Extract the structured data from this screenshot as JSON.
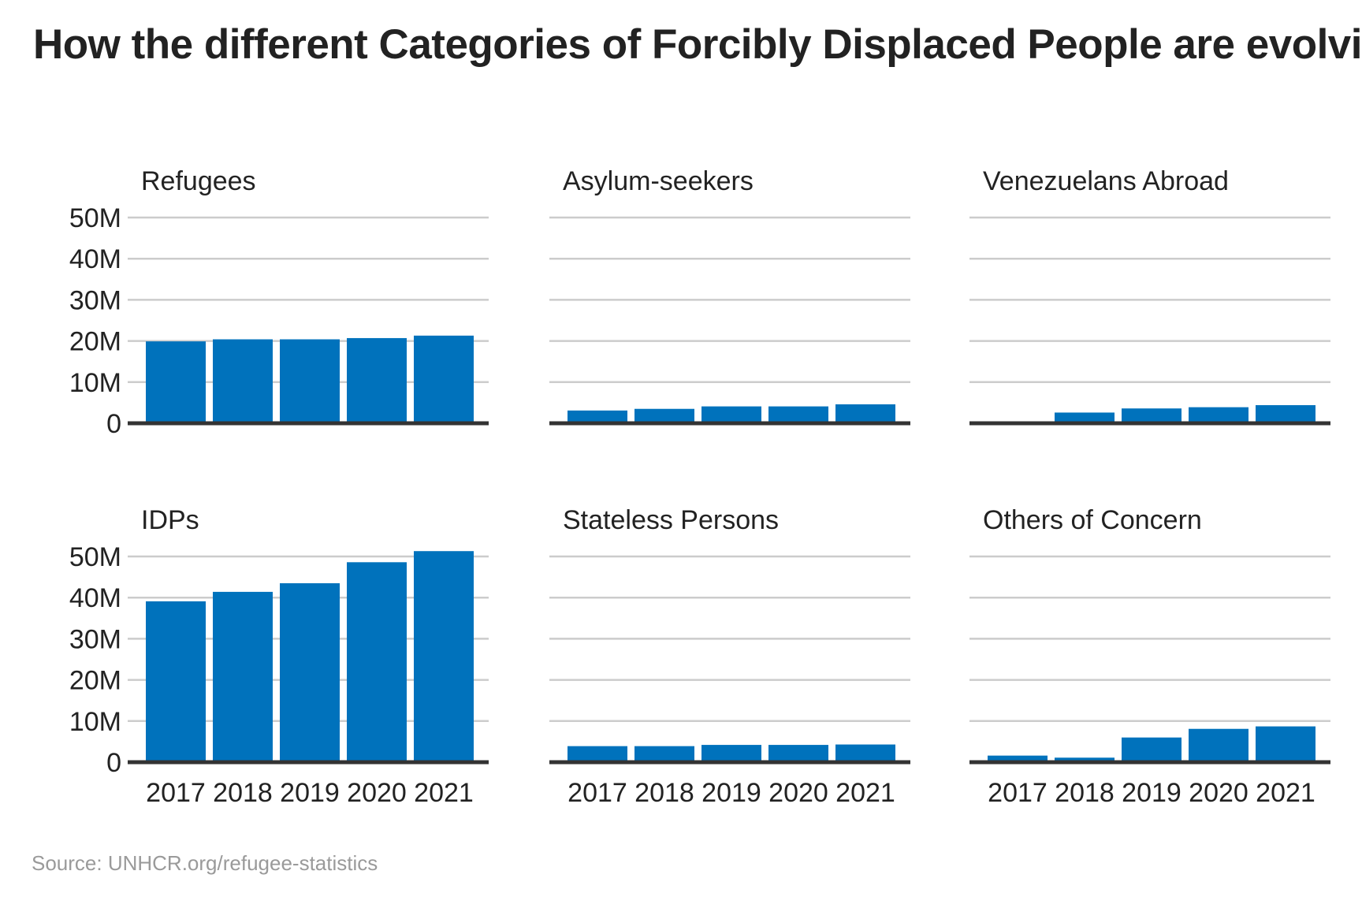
{
  "title": "How the different Categories of Forcibly Displaced People are evolving",
  "source": "Source: UNHCR.org/refugee-statistics",
  "colors": {
    "bar": "#0072bc",
    "grid": "#cccccc",
    "axis": "#333333",
    "text": "#222222",
    "source": "#9a9a9a"
  },
  "chart_data": [
    {
      "type": "bar",
      "title": "Refugees",
      "categories": [
        "2017",
        "2018",
        "2019",
        "2020",
        "2021"
      ],
      "values": [
        19.9,
        20.4,
        20.4,
        20.7,
        21.3
      ],
      "ylim": [
        0,
        50
      ],
      "yticks": [
        "0",
        "10M",
        "20M",
        "30M",
        "40M",
        "50M"
      ],
      "xticks_shown": false,
      "yticks_shown": true,
      "grid": true
    },
    {
      "type": "bar",
      "title": "Asylum-seekers",
      "categories": [
        "2017",
        "2018",
        "2019",
        "2020",
        "2021"
      ],
      "values": [
        3.1,
        3.5,
        4.1,
        4.1,
        4.6
      ],
      "ylim": [
        0,
        50
      ],
      "yticks": [
        "0",
        "10M",
        "20M",
        "30M",
        "40M",
        "50M"
      ],
      "xticks_shown": false,
      "yticks_shown": false,
      "grid": true
    },
    {
      "type": "bar",
      "title": "Venezuelans Abroad",
      "categories": [
        "2017",
        "2018",
        "2019",
        "2020",
        "2021"
      ],
      "values": [
        0,
        2.6,
        3.6,
        3.9,
        4.4
      ],
      "ylim": [
        0,
        50
      ],
      "yticks": [
        "0",
        "10M",
        "20M",
        "30M",
        "40M",
        "50M"
      ],
      "xticks_shown": false,
      "yticks_shown": false,
      "grid": true
    },
    {
      "type": "bar",
      "title": "IDPs",
      "categories": [
        "2017",
        "2018",
        "2019",
        "2020",
        "2021"
      ],
      "values": [
        39.1,
        41.4,
        43.5,
        48.6,
        51.3
      ],
      "ylim": [
        0,
        50
      ],
      "yticks": [
        "0",
        "10M",
        "20M",
        "30M",
        "40M",
        "50M"
      ],
      "xticks_shown": true,
      "yticks_shown": true,
      "grid": true
    },
    {
      "type": "bar",
      "title": "Stateless Persons",
      "categories": [
        "2017",
        "2018",
        "2019",
        "2020",
        "2021"
      ],
      "values": [
        3.9,
        3.9,
        4.2,
        4.2,
        4.3
      ],
      "ylim": [
        0,
        50
      ],
      "yticks": [
        "0",
        "10M",
        "20M",
        "30M",
        "40M",
        "50M"
      ],
      "xticks_shown": true,
      "yticks_shown": false,
      "grid": true
    },
    {
      "type": "bar",
      "title": "Others of Concern",
      "categories": [
        "2017",
        "2018",
        "2019",
        "2020",
        "2021"
      ],
      "values": [
        1.6,
        1.1,
        6.0,
        8.1,
        8.7
      ],
      "ylim": [
        0,
        50
      ],
      "yticks": [
        "0",
        "10M",
        "20M",
        "30M",
        "40M",
        "50M"
      ],
      "xticks_shown": true,
      "yticks_shown": false,
      "grid": true
    }
  ]
}
